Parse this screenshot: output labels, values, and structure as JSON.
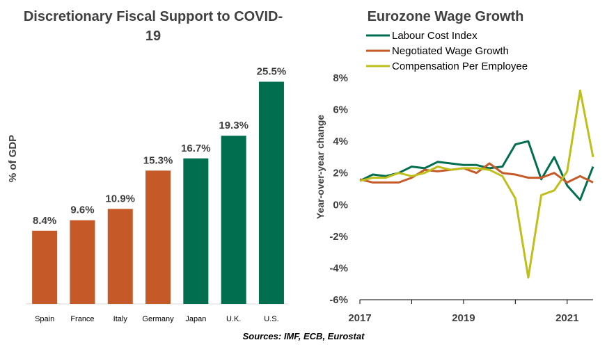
{
  "chart_data": [
    {
      "type": "bar",
      "title": "Discretionary Fiscal Support to COVID-19",
      "ylabel": "% of GDP",
      "xlabel": "",
      "categories": [
        "Spain",
        "France",
        "Italy",
        "Germany",
        "Japan",
        "U.K.",
        "U.S."
      ],
      "values": [
        8.4,
        9.6,
        10.9,
        15.3,
        16.7,
        19.3,
        25.5
      ],
      "data_labels": [
        "8.4%",
        "9.6%",
        "10.9%",
        "15.3%",
        "16.7%",
        "19.3%",
        "25.5%"
      ],
      "bar_colors": [
        "#C55A28",
        "#C55A28",
        "#C55A28",
        "#C55A28",
        "#006E4F",
        "#006E4F",
        "#006E4F"
      ],
      "ylim": [
        0,
        26.5
      ],
      "grid": false
    },
    {
      "type": "line",
      "title": "Eurozone Wage Growth",
      "xlabel": "",
      "ylabel": "Year-over-year change",
      "x_ticks": [
        "2017",
        "2019",
        "2021"
      ],
      "y_ticks": [
        "8%",
        "6%",
        "4%",
        "2%",
        "0%",
        "-2%",
        "-4%",
        "-6%"
      ],
      "ylim": [
        -6,
        8
      ],
      "xlim": [
        "2017-Q1",
        "2021-Q3"
      ],
      "x": [
        "2017-Q1",
        "2017-Q2",
        "2017-Q3",
        "2017-Q4",
        "2018-Q1",
        "2018-Q2",
        "2018-Q3",
        "2018-Q4",
        "2019-Q1",
        "2019-Q2",
        "2019-Q3",
        "2019-Q4",
        "2020-Q1",
        "2020-Q2",
        "2020-Q3",
        "2020-Q4",
        "2021-Q1",
        "2021-Q2",
        "2021-Q3"
      ],
      "legend_position": "top-left",
      "grid": false,
      "series": [
        {
          "name": "Labour Cost Index",
          "color": "#006E4F",
          "values": [
            1.5,
            1.9,
            1.8,
            2.0,
            2.4,
            2.3,
            2.7,
            2.6,
            2.5,
            2.5,
            2.3,
            2.4,
            3.8,
            4.0,
            1.6,
            3.0,
            1.2,
            0.3,
            2.4
          ]
        },
        {
          "name": "Negotiated Wage Growth",
          "color": "#C55A28",
          "values": [
            1.6,
            1.4,
            1.4,
            1.4,
            1.7,
            2.2,
            2.1,
            2.2,
            2.3,
            2.0,
            2.6,
            2.0,
            1.9,
            1.7,
            1.7,
            2.0,
            1.4,
            1.8,
            1.4
          ]
        },
        {
          "name": "Compensation Per Employee",
          "color": "#BFBF1A",
          "values": [
            1.5,
            1.7,
            1.7,
            2.0,
            1.8,
            2.0,
            2.4,
            2.2,
            2.3,
            2.3,
            2.2,
            1.8,
            0.4,
            -4.6,
            0.6,
            0.9,
            2.1,
            7.2,
            3.0
          ]
        }
      ]
    }
  ],
  "source": "Sources: IMF, ECB, Eurostat"
}
